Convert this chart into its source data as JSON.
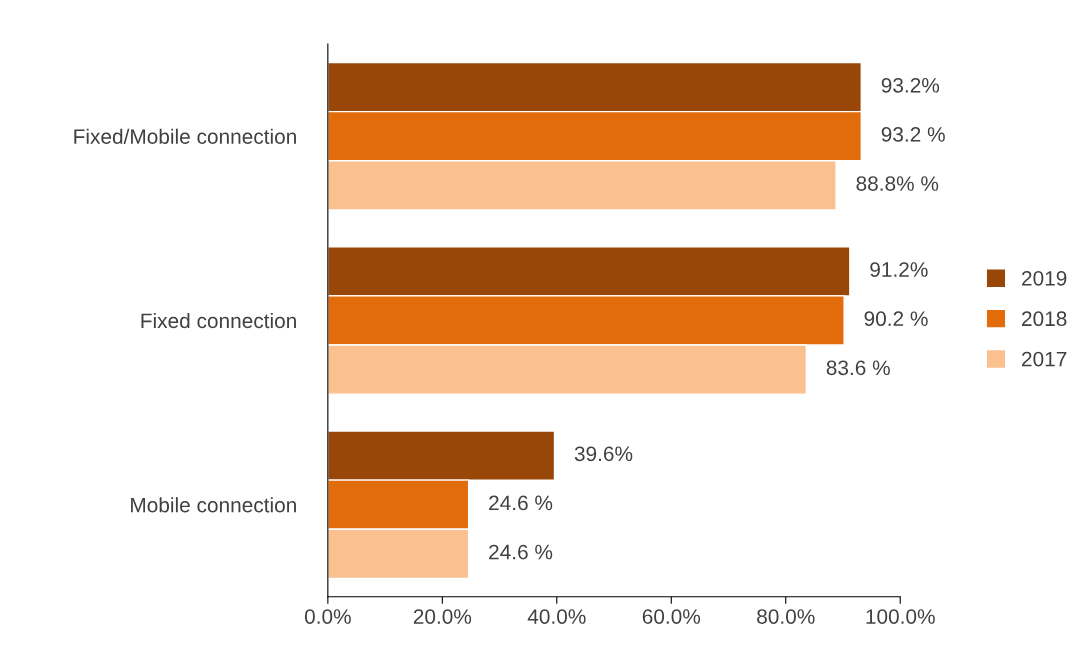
{
  "chart_data": {
    "type": "bar",
    "orientation": "horizontal",
    "categories": [
      "Fixed/Mobile connection",
      "Fixed connection",
      "Mobile connection"
    ],
    "series": [
      {
        "name": "2019",
        "color": "#994709",
        "values": [
          93.2,
          91.2,
          39.6
        ],
        "value_labels": [
          "93.2%",
          "91.2%",
          "39.6%"
        ]
      },
      {
        "name": "2018",
        "color": "#e36c0a",
        "values": [
          93.2,
          90.2,
          24.6
        ],
        "value_labels": [
          "93.2 %",
          "90.2 %",
          "24.6 %"
        ]
      },
      {
        "name": "2017",
        "color": "#fac090",
        "values": [
          88.8,
          83.6,
          24.6
        ],
        "value_labels": [
          "88.8% %",
          "83.6 %",
          "24.6 %"
        ]
      }
    ],
    "xlim": [
      0,
      100
    ],
    "xticks": [
      {
        "value": 0,
        "label": "0.0%"
      },
      {
        "value": 20,
        "label": "20.0%"
      },
      {
        "value": 40,
        "label": "40.0%"
      },
      {
        "value": 60,
        "label": "60.0%"
      },
      {
        "value": 80,
        "label": "80.0%"
      },
      {
        "value": 100,
        "label": "100.0%"
      }
    ],
    "grid": false,
    "legend": "right"
  }
}
